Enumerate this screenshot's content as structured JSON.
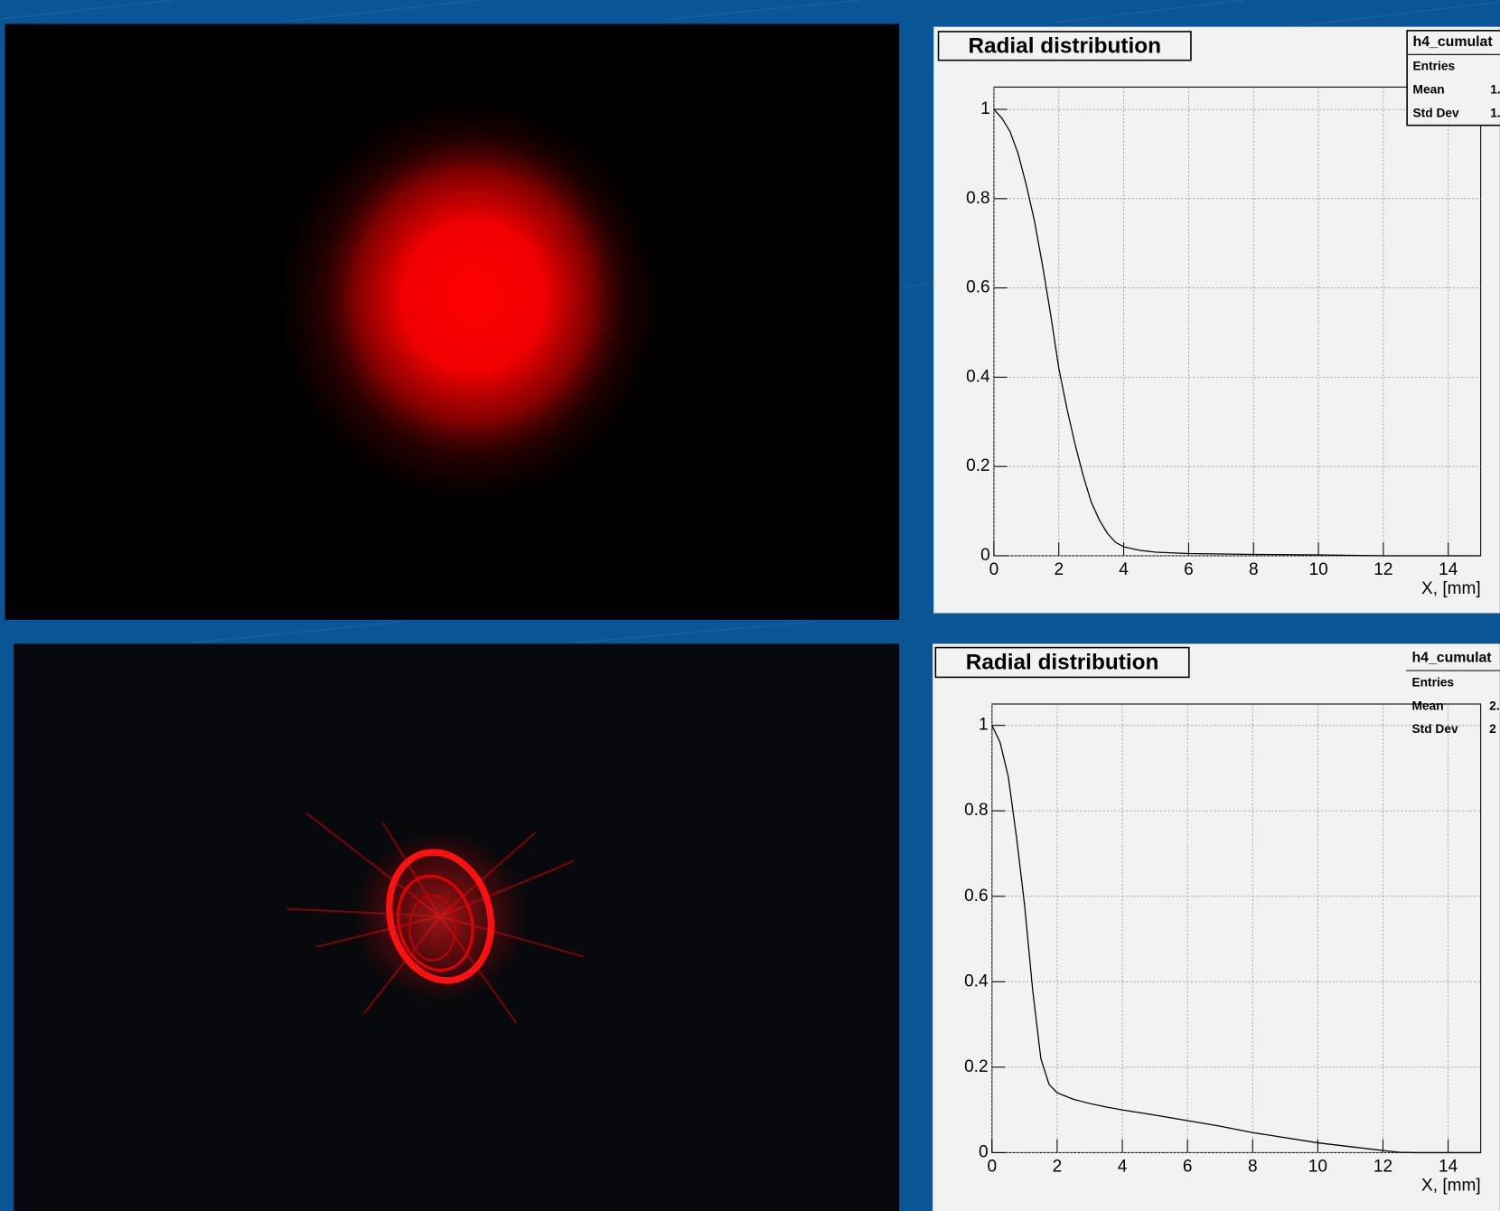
{
  "chart_data": [
    {
      "type": "line",
      "title": "Radial distribution",
      "x_label": "X, [mm]",
      "stats": {
        "title": "h4_cumulat",
        "rows": [
          {
            "label": "Entries"
          },
          {
            "label": "Mean",
            "value": "1."
          },
          {
            "label": "Std Dev",
            "value": "1."
          }
        ]
      },
      "x": [
        0,
        0.25,
        0.5,
        0.75,
        1,
        1.25,
        1.5,
        1.75,
        2,
        2.25,
        2.5,
        2.75,
        3,
        3.25,
        3.5,
        3.75,
        4,
        4.5,
        5,
        6,
        7,
        8,
        10,
        12,
        15
      ],
      "series": [
        {
          "color": "#000000",
          "values": [
            1,
            0.98,
            0.95,
            0.9,
            0.83,
            0.75,
            0.65,
            0.54,
            0.42,
            0.33,
            0.25,
            0.18,
            0.12,
            0.08,
            0.05,
            0.03,
            0.02,
            0.012,
            0.008,
            0.005,
            0.004,
            0.003,
            0.002,
            0,
            0
          ]
        }
      ],
      "xlim": [
        0,
        15
      ],
      "xticks": [
        0,
        2,
        4,
        6,
        8,
        10,
        12,
        14
      ],
      "ylim": [
        0,
        1.05
      ],
      "yticks": [
        0,
        0.2,
        0.4,
        0.6,
        0.8,
        1
      ],
      "grid": true
    },
    {
      "type": "line",
      "title": "Radial distribution",
      "x_label": "X, [mm]",
      "stats": {
        "title": "h4_cumulat",
        "rows": [
          {
            "label": "Entries"
          },
          {
            "label": "Mean",
            "value": "2."
          },
          {
            "label": "Std Dev",
            "value": "2"
          }
        ]
      },
      "x": [
        0,
        0.25,
        0.5,
        0.75,
        1,
        1.25,
        1.5,
        1.75,
        2,
        2.5,
        3,
        3.5,
        4,
        5,
        6,
        7,
        8,
        9,
        10,
        11,
        12,
        12.5,
        13,
        15
      ],
      "series": [
        {
          "color": "#000000",
          "values": [
            1,
            0.96,
            0.88,
            0.74,
            0.58,
            0.38,
            0.22,
            0.16,
            0.14,
            0.125,
            0.115,
            0.107,
            0.1,
            0.088,
            0.075,
            0.062,
            0.047,
            0.035,
            0.023,
            0.014,
            0.005,
            0.001,
            0,
            0
          ]
        }
      ],
      "xlim": [
        0,
        15
      ],
      "xticks": [
        0,
        2,
        4,
        6,
        8,
        10,
        12,
        14
      ],
      "ylim": [
        0,
        1.05
      ],
      "yticks": [
        0,
        0.2,
        0.4,
        0.6,
        0.8,
        1
      ],
      "grid": true
    }
  ]
}
